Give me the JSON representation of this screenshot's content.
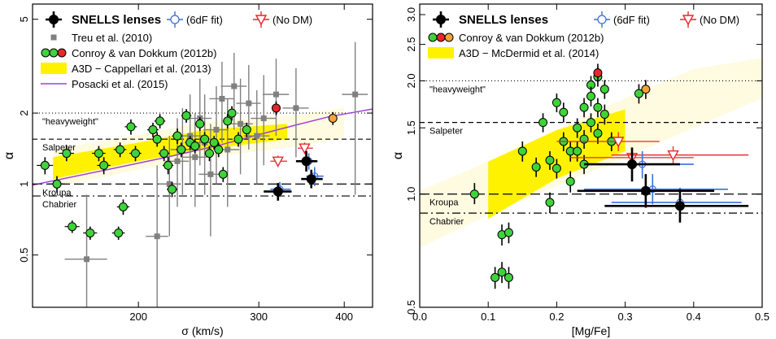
{
  "chart_data": [
    {
      "type": "scatter",
      "xlabel": "σ (km/s)",
      "ylabel": "α",
      "xscale": "log",
      "yscale": "log",
      "xlim": [
        140,
        440
      ],
      "ylim": [
        0.3,
        5.8
      ],
      "x_ticks": [
        {
          "value": 200,
          "label": "200"
        },
        {
          "value": 300,
          "label": "300"
        },
        {
          "value": 400,
          "label": "400"
        }
      ],
      "y_ticks": [
        {
          "value": 0.5,
          "label": "0.5"
        },
        {
          "value": 1,
          "label": "1"
        },
        {
          "value": 2,
          "label": "2"
        },
        {
          "value": 5,
          "label": "5"
        }
      ],
      "reference_lines": [
        {
          "name": "heavyweight",
          "label": "\"heavyweight\"",
          "value": 2.0,
          "style": "dotted"
        },
        {
          "name": "salpeter",
          "label": "Salpeter",
          "value": 1.55,
          "style": "dashed"
        },
        {
          "name": "kroupa",
          "label": "Kroupa",
          "value": 1.0,
          "style": "longdash"
        },
        {
          "name": "chabrier",
          "label": "Chabrier",
          "value": 0.89,
          "style": "dotdash"
        }
      ],
      "legend": [
        {
          "label": "SNELLS lenses",
          "marker": "black-circle",
          "bold": true
        },
        {
          "label": "Treu et al. (2010)",
          "marker": "gray-square"
        },
        {
          "label": "Conroy & van Dokkum (2012b)",
          "marker": "green-red-circles"
        },
        {
          "label": "A3D − Cappellari et al. (2013)",
          "marker": "yellow-band"
        },
        {
          "label": "Posacki et al. (2015)",
          "marker": "purple-line"
        },
        {
          "label": "(6dF fit)",
          "marker": "blue-open-circle",
          "color": "#3b6fd8"
        },
        {
          "label": "(No DM)",
          "marker": "red-open-triangle",
          "color": "#e8262b"
        }
      ],
      "band": [
        [
          150,
          1.05,
          1.3
        ],
        [
          200,
          1.25,
          1.5
        ],
        [
          250,
          1.4,
          1.7
        ],
        [
          330,
          1.55,
          1.8
        ],
        [
          400,
          1.7,
          1.95
        ]
      ],
      "posacki_curve": [
        [
          140,
          0.99
        ],
        [
          180,
          1.15
        ],
        [
          220,
          1.3
        ],
        [
          260,
          1.45
        ],
        [
          300,
          1.62
        ],
        [
          340,
          1.78
        ],
        [
          380,
          1.93
        ],
        [
          440,
          2.08
        ]
      ],
      "treu": [
        {
          "x": 168,
          "y": 0.48,
          "xe": 12,
          "ylo": 0.3,
          "yhi": 0.9
        },
        {
          "x": 213,
          "y": 0.6,
          "xe": 8,
          "ylo": 0.3,
          "yhi": 1.2
        },
        {
          "x": 222,
          "y": 1.0,
          "xe": 8,
          "ylo": 0.6,
          "yhi": 1.6
        },
        {
          "x": 228,
          "y": 1.25,
          "xe": 9,
          "ylo": 0.8,
          "yhi": 1.9
        },
        {
          "x": 232,
          "y": 1.4,
          "xe": 9,
          "ylo": 0.9,
          "yhi": 2.1
        },
        {
          "x": 238,
          "y": 1.6,
          "xe": 10,
          "ylo": 1.0,
          "yhi": 2.4
        },
        {
          "x": 242,
          "y": 1.3,
          "xe": 10,
          "ylo": 0.8,
          "yhi": 2.0
        },
        {
          "x": 246,
          "y": 1.9,
          "xe": 10,
          "ylo": 1.2,
          "yhi": 2.8
        },
        {
          "x": 250,
          "y": 1.5,
          "xe": 10,
          "ylo": 0.9,
          "yhi": 2.4
        },
        {
          "x": 255,
          "y": 1.1,
          "xe": 10,
          "ylo": 0.6,
          "yhi": 1.8
        },
        {
          "x": 260,
          "y": 1.7,
          "xe": 11,
          "ylo": 1.0,
          "yhi": 2.6
        },
        {
          "x": 265,
          "y": 2.3,
          "xe": 11,
          "ylo": 1.5,
          "yhi": 3.3
        },
        {
          "x": 270,
          "y": 1.4,
          "xe": 11,
          "ylo": 0.8,
          "yhi": 2.3
        },
        {
          "x": 276,
          "y": 2.6,
          "xe": 12,
          "ylo": 1.7,
          "yhi": 3.6
        },
        {
          "x": 282,
          "y": 1.8,
          "xe": 12,
          "ylo": 1.1,
          "yhi": 2.8
        },
        {
          "x": 290,
          "y": 2.2,
          "xe": 12,
          "ylo": 1.4,
          "yhi": 3.2
        },
        {
          "x": 298,
          "y": 1.6,
          "xe": 13,
          "ylo": 1.0,
          "yhi": 2.5
        },
        {
          "x": 305,
          "y": 1.9,
          "xe": 13,
          "ylo": 1.2,
          "yhi": 2.9
        },
        {
          "x": 318,
          "y": 2.4,
          "xe": 14,
          "ylo": 1.6,
          "yhi": 3.4
        },
        {
          "x": 340,
          "y": 2.1,
          "xe": 15,
          "ylo": 1.3,
          "yhi": 3.1
        },
        {
          "x": 415,
          "y": 2.4,
          "xe": 18,
          "ylo": 0.9,
          "yhi": 4.0
        }
      ],
      "conroy_green": [
        {
          "x": 146,
          "y": 1.2,
          "xe": 4,
          "ylo": 1.1,
          "yhi": 1.3
        },
        {
          "x": 152,
          "y": 1.0,
          "xe": 4,
          "ylo": 0.92,
          "yhi": 1.08
        },
        {
          "x": 157,
          "y": 1.35,
          "xe": 4,
          "ylo": 1.25,
          "yhi": 1.45
        },
        {
          "x": 160,
          "y": 0.66,
          "xe": 4,
          "ylo": 0.62,
          "yhi": 0.7
        },
        {
          "x": 170,
          "y": 0.62,
          "xe": 4,
          "ylo": 0.58,
          "yhi": 0.66
        },
        {
          "x": 175,
          "y": 1.35,
          "xe": 4,
          "ylo": 1.25,
          "yhi": 1.45
        },
        {
          "x": 178,
          "y": 1.2,
          "xe": 4,
          "ylo": 1.1,
          "yhi": 1.3
        },
        {
          "x": 187,
          "y": 0.62,
          "xe": 4,
          "ylo": 0.58,
          "yhi": 0.66
        },
        {
          "x": 188,
          "y": 1.4,
          "xe": 4,
          "ylo": 1.3,
          "yhi": 1.5
        },
        {
          "x": 190,
          "y": 0.8,
          "xe": 4,
          "ylo": 0.74,
          "yhi": 0.86
        },
        {
          "x": 195,
          "y": 1.75,
          "xe": 4,
          "ylo": 1.62,
          "yhi": 1.88
        },
        {
          "x": 198,
          "y": 1.35,
          "xe": 4,
          "ylo": 1.25,
          "yhi": 1.45
        },
        {
          "x": 210,
          "y": 1.7,
          "xe": 4,
          "ylo": 1.58,
          "yhi": 1.82
        },
        {
          "x": 213,
          "y": 1.55,
          "xe": 4,
          "ylo": 1.44,
          "yhi": 1.66
        },
        {
          "x": 215,
          "y": 1.85,
          "xe": 4,
          "ylo": 1.72,
          "yhi": 1.98
        },
        {
          "x": 218,
          "y": 1.35,
          "xe": 4,
          "ylo": 1.25,
          "yhi": 1.45
        },
        {
          "x": 221,
          "y": 1.2,
          "xe": 4,
          "ylo": 1.1,
          "yhi": 1.3
        },
        {
          "x": 224,
          "y": 0.95,
          "xe": 4,
          "ylo": 0.88,
          "yhi": 1.02
        },
        {
          "x": 228,
          "y": 1.6,
          "xe": 4,
          "ylo": 1.48,
          "yhi": 1.72
        },
        {
          "x": 231,
          "y": 1.4,
          "xe": 4,
          "ylo": 1.3,
          "yhi": 1.5
        },
        {
          "x": 235,
          "y": 1.95,
          "xe": 4,
          "ylo": 1.82,
          "yhi": 2.08
        },
        {
          "x": 238,
          "y": 1.5,
          "xe": 4,
          "ylo": 1.4,
          "yhi": 1.6
        },
        {
          "x": 242,
          "y": 1.45,
          "xe": 4,
          "ylo": 1.35,
          "yhi": 1.55
        },
        {
          "x": 246,
          "y": 1.8,
          "xe": 4,
          "ylo": 1.68,
          "yhi": 1.92
        },
        {
          "x": 250,
          "y": 1.55,
          "xe": 4,
          "ylo": 1.44,
          "yhi": 1.66
        },
        {
          "x": 254,
          "y": 1.35,
          "xe": 4,
          "ylo": 1.25,
          "yhi": 1.45
        },
        {
          "x": 258,
          "y": 1.5,
          "xe": 4,
          "ylo": 1.4,
          "yhi": 1.6
        },
        {
          "x": 262,
          "y": 1.4,
          "xe": 4,
          "ylo": 1.3,
          "yhi": 1.5
        },
        {
          "x": 266,
          "y": 1.1,
          "xe": 4,
          "ylo": 1.02,
          "yhi": 1.18
        },
        {
          "x": 270,
          "y": 1.85,
          "xe": 4,
          "ylo": 1.72,
          "yhi": 1.98
        },
        {
          "x": 274,
          "y": 2.0,
          "xe": 4,
          "ylo": 1.86,
          "yhi": 2.14
        },
        {
          "x": 280,
          "y": 1.55,
          "xe": 4,
          "ylo": 1.44,
          "yhi": 1.66
        },
        {
          "x": 288,
          "y": 1.7,
          "xe": 4,
          "ylo": 1.58,
          "yhi": 1.82
        }
      ],
      "conroy_red": [
        {
          "x": 318,
          "y": 2.1,
          "xe": 4,
          "ylo": 1.96,
          "yhi": 2.24
        }
      ],
      "conroy_orange": [
        {
          "x": 385,
          "y": 1.9,
          "xe": 4,
          "ylo": 1.78,
          "yhi": 2.02
        }
      ],
      "snells": [
        {
          "x": 320,
          "y": 0.93,
          "xlo": 305,
          "xhi": 335,
          "ylo": 0.85,
          "yhi": 1.01
        },
        {
          "x": 352,
          "y": 1.25,
          "xlo": 340,
          "xhi": 365,
          "ylo": 1.13,
          "yhi": 1.38
        },
        {
          "x": 358,
          "y": 1.05,
          "xlo": 346,
          "xhi": 372,
          "ylo": 0.96,
          "yhi": 1.15
        }
      ],
      "sixdf": [
        {
          "x": 322,
          "y": 0.95,
          "xlo": 312,
          "xhi": 334,
          "ylo": 0.88,
          "yhi": 1.02
        },
        {
          "x": 355,
          "y": 1.25,
          "xlo": 345,
          "xhi": 366,
          "ylo": 1.15,
          "yhi": 1.35
        },
        {
          "x": 362,
          "y": 1.08,
          "xlo": 352,
          "xhi": 373,
          "ylo": 0.98,
          "yhi": 1.18
        }
      ],
      "nodm": [
        {
          "x": 320,
          "y": 1.25,
          "xlo": 312,
          "xhi": 330,
          "ylo": 1.18,
          "yhi": 1.32
        },
        {
          "x": 350,
          "y": 1.42,
          "xlo": 342,
          "xhi": 360,
          "ylo": 1.34,
          "yhi": 1.5
        }
      ]
    },
    {
      "type": "scatter",
      "xlabel": "[Mg/Fe]",
      "ylabel": "α",
      "xscale": "linear",
      "yscale": "log",
      "xlim": [
        0.0,
        0.5
      ],
      "ylim": [
        0.5,
        3.2
      ],
      "x_ticks": [
        {
          "value": 0.0,
          "label": "0.0"
        },
        {
          "value": 0.1,
          "label": "0.1"
        },
        {
          "value": 0.2,
          "label": "0.2"
        },
        {
          "value": 0.3,
          "label": "0.3"
        },
        {
          "value": 0.4,
          "label": "0.4"
        },
        {
          "value": 0.5,
          "label": "0.5"
        }
      ],
      "y_ticks": [
        {
          "value": 0.5,
          "label": "0.5"
        },
        {
          "value": 1.0,
          "label": "1.0"
        },
        {
          "value": 1.5,
          "label": "1.5"
        },
        {
          "value": 2.0,
          "label": "2.0"
        },
        {
          "value": 2.5,
          "label": "2.5"
        },
        {
          "value": 3.0,
          "label": "3.0"
        }
      ],
      "reference_lines": [
        {
          "name": "heavyweight",
          "label": "\"heavyweight\"",
          "value": 2.0,
          "style": "dotted"
        },
        {
          "name": "salpeter",
          "label": "Salpeter",
          "value": 1.55,
          "style": "dashed"
        },
        {
          "name": "kroupa",
          "label": "Kroupa",
          "value": 1.0,
          "style": "longdash"
        },
        {
          "name": "chabrier",
          "label": "Chabrier",
          "value": 0.89,
          "style": "dotdash"
        }
      ],
      "legend": [
        {
          "label": "SNELLS lenses",
          "marker": "black-circle",
          "bold": true
        },
        {
          "label": "Conroy & van Dokkum (2012b)",
          "marker": "green-red-orange-circles"
        },
        {
          "label": "A3D − McDermid et al. (2014)",
          "marker": "yellow-band"
        },
        {
          "label": "(6dF fit)",
          "marker": "blue-open-circle",
          "color": "#3b6fd8"
        },
        {
          "label": "(No DM)",
          "marker": "red-open-triangle",
          "color": "#e8262b"
        }
      ],
      "band_outer": [
        [
          0.0,
          0.72,
          1.02
        ],
        [
          0.1,
          0.88,
          1.22
        ],
        [
          0.2,
          1.05,
          1.48
        ],
        [
          0.3,
          1.25,
          1.8
        ],
        [
          0.4,
          1.5,
          2.15
        ],
        [
          0.5,
          1.8,
          2.3
        ]
      ],
      "band_inner": [
        [
          0.1,
          0.86,
          1.22
        ],
        [
          0.2,
          1.1,
          1.48
        ],
        [
          0.3,
          1.3,
          1.68
        ]
      ],
      "conroy_green": [
        {
          "x": 0.08,
          "y": 1.0,
          "ylo": 0.94,
          "yhi": 1.07
        },
        {
          "x": 0.11,
          "y": 0.6,
          "ylo": 0.56,
          "yhi": 0.64
        },
        {
          "x": 0.12,
          "y": 0.62,
          "ylo": 0.58,
          "yhi": 0.66
        },
        {
          "x": 0.12,
          "y": 0.78,
          "ylo": 0.73,
          "yhi": 0.83
        },
        {
          "x": 0.13,
          "y": 0.6,
          "ylo": 0.56,
          "yhi": 0.64
        },
        {
          "x": 0.13,
          "y": 0.79,
          "ylo": 0.74,
          "yhi": 0.84
        },
        {
          "x": 0.15,
          "y": 1.3,
          "ylo": 1.22,
          "yhi": 1.38
        },
        {
          "x": 0.17,
          "y": 1.18,
          "ylo": 1.11,
          "yhi": 1.25
        },
        {
          "x": 0.18,
          "y": 1.55,
          "ylo": 1.46,
          "yhi": 1.64
        },
        {
          "x": 0.19,
          "y": 0.95,
          "ylo": 0.89,
          "yhi": 1.01
        },
        {
          "x": 0.19,
          "y": 1.23,
          "ylo": 1.16,
          "yhi": 1.3
        },
        {
          "x": 0.2,
          "y": 1.75,
          "ylo": 1.65,
          "yhi": 1.85
        },
        {
          "x": 0.2,
          "y": 1.17,
          "ylo": 1.1,
          "yhi": 1.24
        },
        {
          "x": 0.21,
          "y": 1.65,
          "ylo": 1.55,
          "yhi": 1.75
        },
        {
          "x": 0.21,
          "y": 1.38,
          "ylo": 1.3,
          "yhi": 1.46
        },
        {
          "x": 0.22,
          "y": 1.3,
          "ylo": 1.22,
          "yhi": 1.38
        },
        {
          "x": 0.22,
          "y": 1.08,
          "ylo": 1.01,
          "yhi": 1.15
        },
        {
          "x": 0.23,
          "y": 1.5,
          "ylo": 1.41,
          "yhi": 1.59
        },
        {
          "x": 0.23,
          "y": 1.3,
          "ylo": 1.22,
          "yhi": 1.38
        },
        {
          "x": 0.24,
          "y": 1.7,
          "ylo": 1.6,
          "yhi": 1.8
        },
        {
          "x": 0.24,
          "y": 1.4,
          "ylo": 1.32,
          "yhi": 1.48
        },
        {
          "x": 0.24,
          "y": 1.2,
          "ylo": 1.13,
          "yhi": 1.27
        },
        {
          "x": 0.25,
          "y": 1.95,
          "ylo": 1.84,
          "yhi": 2.06
        },
        {
          "x": 0.25,
          "y": 1.82,
          "ylo": 1.71,
          "yhi": 1.93
        },
        {
          "x": 0.25,
          "y": 1.55,
          "ylo": 1.46,
          "yhi": 1.64
        },
        {
          "x": 0.26,
          "y": 2.05,
          "ylo": 1.93,
          "yhi": 2.17
        },
        {
          "x": 0.26,
          "y": 1.7,
          "ylo": 1.6,
          "yhi": 1.8
        },
        {
          "x": 0.26,
          "y": 1.45,
          "ylo": 1.36,
          "yhi": 1.54
        },
        {
          "x": 0.27,
          "y": 1.9,
          "ylo": 1.79,
          "yhi": 2.01
        },
        {
          "x": 0.27,
          "y": 1.63,
          "ylo": 1.53,
          "yhi": 1.73
        },
        {
          "x": 0.28,
          "y": 1.38,
          "ylo": 1.3,
          "yhi": 1.46
        },
        {
          "x": 0.32,
          "y": 1.85,
          "ylo": 1.74,
          "yhi": 1.96
        }
      ],
      "conroy_red": [
        {
          "x": 0.26,
          "y": 2.1,
          "ylo": 1.98,
          "yhi": 2.22
        }
      ],
      "conroy_orange": [
        {
          "x": 0.33,
          "y": 1.9,
          "ylo": 1.79,
          "yhi": 2.01
        }
      ],
      "snells": [
        {
          "x": 0.31,
          "y": 1.2,
          "xlo": 0.24,
          "xhi": 0.38,
          "ylo": 1.08,
          "yhi": 1.33
        },
        {
          "x": 0.33,
          "y": 1.02,
          "xlo": 0.23,
          "xhi": 0.43,
          "ylo": 0.92,
          "yhi": 1.13
        },
        {
          "x": 0.38,
          "y": 0.93,
          "xlo": 0.27,
          "xhi": 0.48,
          "ylo": 0.84,
          "yhi": 1.03
        }
      ],
      "sixdf": [
        {
          "x": 0.325,
          "y": 1.2,
          "xlo": 0.25,
          "xhi": 0.4,
          "ylo": 1.1,
          "yhi": 1.3
        },
        {
          "x": 0.34,
          "y": 1.03,
          "xlo": 0.24,
          "xhi": 0.45,
          "ylo": 0.94,
          "yhi": 1.13
        },
        {
          "x": 0.38,
          "y": 0.95,
          "xlo": 0.28,
          "xhi": 0.47,
          "ylo": 0.87,
          "yhi": 1.04
        }
      ],
      "nodm": [
        {
          "x": 0.29,
          "y": 1.38,
          "xlo": 0.2,
          "xhi": 0.35,
          "ylo": 1.3,
          "yhi": 1.46
        },
        {
          "x": 0.31,
          "y": 1.25,
          "xlo": 0.22,
          "xhi": 0.4,
          "ylo": 1.18,
          "yhi": 1.32
        },
        {
          "x": 0.37,
          "y": 1.27,
          "xlo": 0.28,
          "xhi": 0.48,
          "ylo": 1.2,
          "yhi": 1.34
        }
      ]
    }
  ]
}
